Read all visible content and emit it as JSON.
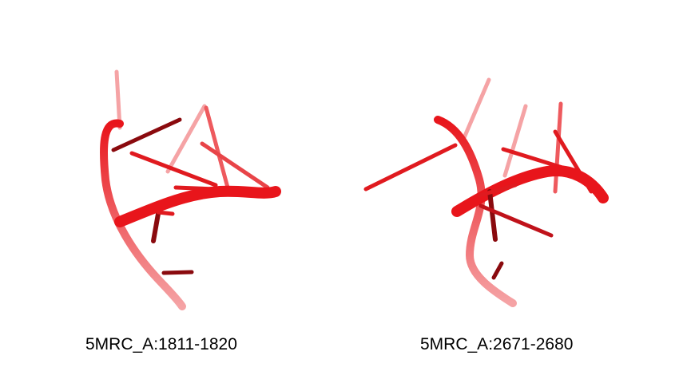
{
  "colors": {
    "backbone": "#e8151b",
    "backbone_light": "#f26a6e",
    "backbone_faded": "#f5a3a5",
    "base_dark": "#8a0a0e",
    "base": "#e01a1f"
  },
  "structures": [
    {
      "label": "5MRC_A:1811-1820"
    },
    {
      "label": "5MRC_A:2671-2680"
    }
  ]
}
